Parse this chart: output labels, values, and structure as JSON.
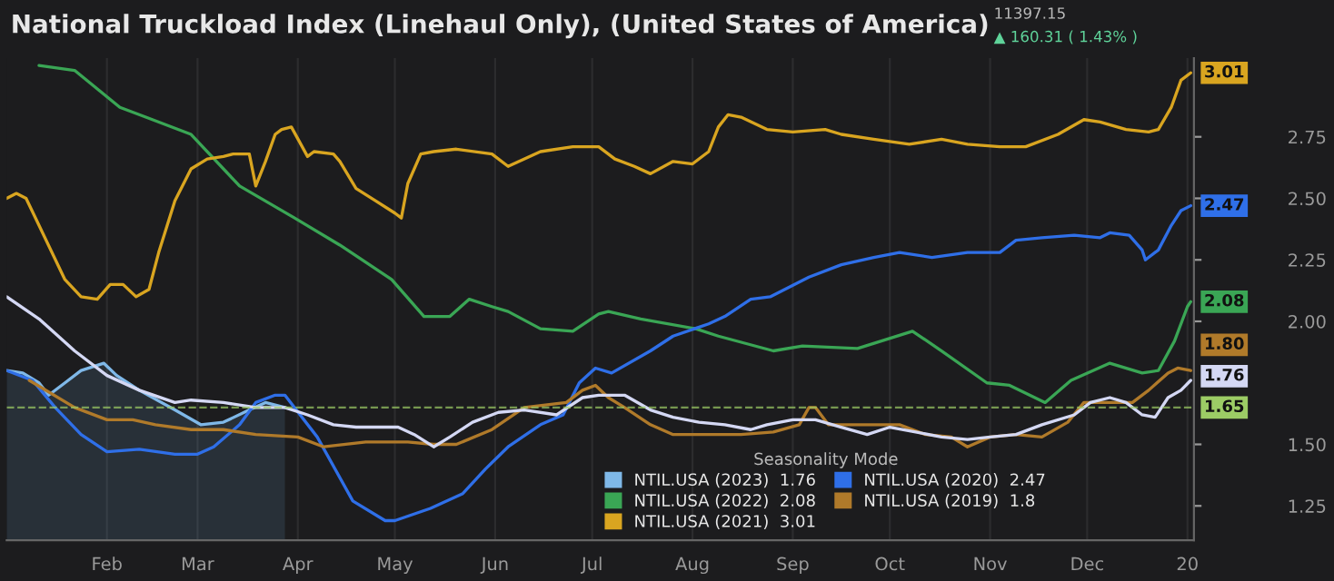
{
  "chart_data": {
    "type": "line",
    "title": "National Truckload Index (Linehaul Only), (United States of America)",
    "legend_title": "Seasonality Mode",
    "annotations": [
      "11397.15",
      "▲ 160.31 ( 1.43% )"
    ],
    "xlim": [
      "2019-01-01",
      "2020-01-03"
    ],
    "xticks": [
      {
        "value": "2019-02-01",
        "label": "Feb"
      },
      {
        "value": "2019-03-01",
        "label": "Mar"
      },
      {
        "value": "2019-04-01",
        "label": "Apr"
      },
      {
        "value": "2019-05-01",
        "label": "May"
      },
      {
        "value": "2019-06-01",
        "label": "Jun"
      },
      {
        "value": "2019-07-01",
        "label": "Jul"
      },
      {
        "value": "2019-08-01",
        "label": "Aug"
      },
      {
        "value": "2019-09-01",
        "label": "Sep"
      },
      {
        "value": "2019-10-01",
        "label": "Oct"
      },
      {
        "value": "2019-11-01",
        "label": "Nov"
      },
      {
        "value": "2019-12-01",
        "label": "Dec"
      },
      {
        "value": "2020-01-01",
        "label": "20"
      }
    ],
    "ylim": [
      1.11,
      3.07
    ],
    "yticks": [
      {
        "value": 1.25,
        "label": "1.25"
      },
      {
        "value": 1.5,
        "label": "1.50"
      },
      {
        "value": 2.0,
        "label": "2.00"
      },
      {
        "value": 2.25,
        "label": "2.25"
      },
      {
        "value": 2.5,
        "label": "2.50"
      },
      {
        "value": 2.75,
        "label": "2.75"
      }
    ],
    "grid": "x",
    "legend": "bottom",
    "marker": "none",
    "line_style": "solid",
    "ref_lines": [
      {
        "axis": "y",
        "value": 1.65,
        "label": "1.65",
        "color": "#9ccc65",
        "line_style": "dashed"
      }
    ],
    "series": [
      {
        "name": "NTIL.USA (2023)  1.76",
        "type": "area",
        "color": "#7fb8e8",
        "x": [
          "2019-01-01",
          "2019-01-06",
          "2019-01-11",
          "2019-01-14",
          "2019-01-19",
          "2019-01-24",
          "2019-01-31",
          "2019-02-04",
          "2019-02-11",
          "2019-02-22",
          "2019-03-02",
          "2019-03-09",
          "2019-03-17",
          "2019-03-22",
          "2019-03-28"
        ],
        "values": [
          1.8,
          1.79,
          1.75,
          1.7,
          1.75,
          1.8,
          1.83,
          1.78,
          1.72,
          1.64,
          1.58,
          1.59,
          1.64,
          1.67,
          1.65
        ]
      },
      {
        "name": "NTIL.USA (2022)  2.08",
        "color": "#3aa655",
        "x": [
          "2019-01-11",
          "2019-01-22",
          "2019-02-05",
          "2019-02-13",
          "2019-02-27",
          "2019-03-14",
          "2019-03-31",
          "2019-04-14",
          "2019-04-30",
          "2019-05-10",
          "2019-05-18",
          "2019-05-24",
          "2019-05-31",
          "2019-06-05",
          "2019-06-15",
          "2019-06-25",
          "2019-07-03",
          "2019-07-06",
          "2019-07-16",
          "2019-08-02",
          "2019-08-09",
          "2019-08-26",
          "2019-09-04",
          "2019-09-21",
          "2019-10-08",
          "2019-10-17",
          "2019-10-31",
          "2019-11-07",
          "2019-11-18",
          "2019-11-26",
          "2019-12-08",
          "2019-12-18",
          "2019-12-23",
          "2019-12-28",
          "2020-01-01",
          "2020-01-02"
        ],
        "values": [
          3.04,
          3.02,
          2.87,
          2.83,
          2.76,
          2.55,
          2.42,
          2.31,
          2.17,
          2.02,
          2.02,
          2.09,
          2.06,
          2.04,
          1.97,
          1.96,
          2.03,
          2.04,
          2.01,
          1.97,
          1.94,
          1.88,
          1.9,
          1.89,
          1.96,
          1.88,
          1.75,
          1.74,
          1.67,
          1.76,
          1.83,
          1.79,
          1.8,
          1.92,
          2.06,
          2.08
        ],
        "value_labels": [
          null,
          null,
          null,
          null,
          null,
          null,
          null,
          null,
          null,
          null,
          null,
          null,
          null,
          null,
          null,
          null,
          null,
          null,
          null,
          null,
          null,
          null,
          null,
          null,
          null,
          null,
          null,
          null,
          null,
          null,
          null,
          null,
          null,
          null,
          null,
          "2.08"
        ]
      },
      {
        "name": "NTIL.USA (2021)  3.01",
        "color": "#d9a520",
        "x": [
          "2019-01-01",
          "2019-01-04",
          "2019-01-07",
          "2019-01-11",
          "2019-01-19",
          "2019-01-24",
          "2019-01-29",
          "2019-02-02",
          "2019-02-06",
          "2019-02-10",
          "2019-02-14",
          "2019-02-17",
          "2019-02-22",
          "2019-02-27",
          "2019-03-04",
          "2019-03-09",
          "2019-03-12",
          "2019-03-17",
          "2019-03-19",
          "2019-03-22",
          "2019-03-25",
          "2019-03-27",
          "2019-03-30",
          "2019-04-04",
          "2019-04-06",
          "2019-04-12",
          "2019-04-14",
          "2019-04-19",
          "2019-04-25",
          "2019-05-01",
          "2019-05-03",
          "2019-05-05",
          "2019-05-09",
          "2019-05-13",
          "2019-05-20",
          "2019-05-31",
          "2019-06-05",
          "2019-06-15",
          "2019-06-25",
          "2019-07-03",
          "2019-07-08",
          "2019-07-14",
          "2019-07-19",
          "2019-07-26",
          "2019-08-01",
          "2019-08-06",
          "2019-08-09",
          "2019-08-12",
          "2019-08-16",
          "2019-08-24",
          "2019-09-01",
          "2019-09-11",
          "2019-09-16",
          "2019-09-26",
          "2019-10-07",
          "2019-10-17",
          "2019-10-25",
          "2019-11-04",
          "2019-11-12",
          "2019-11-22",
          "2019-11-30",
          "2019-12-05",
          "2019-12-13",
          "2019-12-20",
          "2019-12-23",
          "2019-12-27",
          "2019-12-30",
          "2020-01-02"
        ],
        "values": [
          2.5,
          2.52,
          2.5,
          2.39,
          2.17,
          2.1,
          2.09,
          2.15,
          2.15,
          2.1,
          2.13,
          2.28,
          2.49,
          2.62,
          2.66,
          2.67,
          2.68,
          2.68,
          2.55,
          2.65,
          2.76,
          2.78,
          2.79,
          2.67,
          2.69,
          2.68,
          2.65,
          2.54,
          2.49,
          2.44,
          2.42,
          2.56,
          2.68,
          2.69,
          2.7,
          2.68,
          2.63,
          2.69,
          2.71,
          2.71,
          2.66,
          2.63,
          2.6,
          2.65,
          2.64,
          2.69,
          2.79,
          2.84,
          2.83,
          2.78,
          2.77,
          2.78,
          2.76,
          2.74,
          2.72,
          2.74,
          2.72,
          2.71,
          2.71,
          2.76,
          2.82,
          2.81,
          2.78,
          2.77,
          2.78,
          2.87,
          2.98,
          3.01
        ],
        "value_labels": [
          null,
          null,
          null,
          null,
          null,
          null,
          null,
          null,
          null,
          null,
          null,
          null,
          null,
          null,
          null,
          null,
          null,
          null,
          null,
          null,
          null,
          null,
          null,
          null,
          null,
          null,
          null,
          null,
          null,
          null,
          null,
          null,
          null,
          null,
          null,
          null,
          null,
          null,
          null,
          null,
          null,
          null,
          null,
          null,
          null,
          null,
          null,
          null,
          null,
          null,
          null,
          null,
          null,
          null,
          null,
          null,
          null,
          null,
          null,
          null,
          null,
          null,
          null,
          null,
          null,
          null,
          null,
          "3.01"
        ]
      },
      {
        "name": "NTIL.USA (2020)  2.47",
        "color": "#2f6fe8",
        "x": [
          "2019-01-01",
          "2019-01-09",
          "2019-01-16",
          "2019-01-24",
          "2019-02-01",
          "2019-02-11",
          "2019-02-22",
          "2019-03-01",
          "2019-03-06",
          "2019-03-14",
          "2019-03-19",
          "2019-03-25",
          "2019-03-28",
          "2019-04-07",
          "2019-04-18",
          "2019-04-28",
          "2019-05-01",
          "2019-05-12",
          "2019-05-22",
          "2019-05-29",
          "2019-06-05",
          "2019-06-15",
          "2019-06-22",
          "2019-06-27",
          "2019-07-02",
          "2019-07-07",
          "2019-07-19",
          "2019-07-26",
          "2019-08-06",
          "2019-08-11",
          "2019-08-19",
          "2019-08-25",
          "2019-09-06",
          "2019-09-16",
          "2019-09-26",
          "2019-10-04",
          "2019-10-14",
          "2019-10-25",
          "2019-11-04",
          "2019-11-09",
          "2019-11-17",
          "2019-11-27",
          "2019-12-05",
          "2019-12-08",
          "2019-12-14",
          "2019-12-18",
          "2019-12-19",
          "2019-12-23",
          "2019-12-27",
          "2019-12-30",
          "2020-01-02"
        ],
        "values": [
          1.8,
          1.76,
          1.65,
          1.54,
          1.47,
          1.48,
          1.46,
          1.46,
          1.49,
          1.58,
          1.67,
          1.7,
          1.7,
          1.53,
          1.27,
          1.19,
          1.19,
          1.24,
          1.3,
          1.4,
          1.49,
          1.58,
          1.62,
          1.75,
          1.81,
          1.79,
          1.88,
          1.94,
          1.99,
          2.02,
          2.09,
          2.1,
          2.18,
          2.23,
          2.26,
          2.28,
          2.26,
          2.28,
          2.28,
          2.33,
          2.34,
          2.35,
          2.34,
          2.36,
          2.35,
          2.29,
          2.25,
          2.29,
          2.39,
          2.45,
          2.47
        ],
        "value_labels": [
          null,
          null,
          null,
          null,
          null,
          null,
          null,
          null,
          null,
          null,
          null,
          null,
          null,
          null,
          null,
          null,
          null,
          null,
          null,
          null,
          null,
          null,
          null,
          null,
          null,
          null,
          null,
          null,
          null,
          null,
          null,
          null,
          null,
          null,
          null,
          null,
          null,
          null,
          null,
          null,
          null,
          null,
          null,
          null,
          null,
          null,
          null,
          null,
          null,
          null,
          "2.47"
        ]
      },
      {
        "name": "NTIL.USA (2019)  1.8",
        "color": "#b07a2a",
        "x": [
          "2019-01-08",
          "2019-01-22",
          "2019-02-01",
          "2019-02-09",
          "2019-02-16",
          "2019-02-27",
          "2019-03-09",
          "2019-03-19",
          "2019-04-01",
          "2019-04-09",
          "2019-04-22",
          "2019-05-05",
          "2019-05-13",
          "2019-05-20",
          "2019-05-31",
          "2019-06-10",
          "2019-06-23",
          "2019-06-28",
          "2019-07-02",
          "2019-07-06",
          "2019-07-11",
          "2019-07-19",
          "2019-07-26",
          "2019-08-06",
          "2019-08-16",
          "2019-08-26",
          "2019-09-03",
          "2019-09-06",
          "2019-09-08",
          "2019-09-12",
          "2019-09-19",
          "2019-09-26",
          "2019-10-04",
          "2019-10-12",
          "2019-10-20",
          "2019-10-25",
          "2019-11-01",
          "2019-11-09",
          "2019-11-17",
          "2019-11-25",
          "2019-11-30",
          "2019-12-08",
          "2019-12-15",
          "2019-12-20",
          "2019-12-26",
          "2019-12-29",
          "2020-01-02"
        ],
        "values": [
          1.76,
          1.65,
          1.6,
          1.6,
          1.58,
          1.56,
          1.56,
          1.54,
          1.53,
          1.49,
          1.51,
          1.51,
          1.5,
          1.5,
          1.56,
          1.65,
          1.67,
          1.72,
          1.74,
          1.69,
          1.65,
          1.58,
          1.54,
          1.54,
          1.54,
          1.55,
          1.58,
          1.65,
          1.65,
          1.58,
          1.58,
          1.58,
          1.58,
          1.54,
          1.53,
          1.49,
          1.53,
          1.54,
          1.53,
          1.59,
          1.67,
          1.67,
          1.67,
          1.72,
          1.79,
          1.81,
          1.8
        ],
        "value_labels": [
          null,
          null,
          null,
          null,
          null,
          null,
          null,
          null,
          null,
          null,
          null,
          null,
          null,
          null,
          null,
          null,
          null,
          null,
          null,
          null,
          null,
          null,
          null,
          null,
          null,
          null,
          null,
          null,
          null,
          null,
          null,
          null,
          null,
          null,
          null,
          null,
          null,
          null,
          null,
          null,
          null,
          null,
          null,
          null,
          null,
          null,
          "1.80"
        ]
      },
      {
        "color": "#d4d8f4",
        "x": [
          "2019-01-01",
          "2019-01-11",
          "2019-01-22",
          "2019-02-01",
          "2019-02-11",
          "2019-02-22",
          "2019-02-27",
          "2019-03-09",
          "2019-03-19",
          "2019-03-28",
          "2019-04-04",
          "2019-04-12",
          "2019-04-19",
          "2019-05-02",
          "2019-05-07",
          "2019-05-13",
          "2019-05-18",
          "2019-05-25",
          "2019-06-02",
          "2019-06-10",
          "2019-06-20",
          "2019-06-28",
          "2019-07-03",
          "2019-07-11",
          "2019-07-19",
          "2019-07-26",
          "2019-08-03",
          "2019-08-11",
          "2019-08-19",
          "2019-08-24",
          "2019-09-01",
          "2019-09-08",
          "2019-09-16",
          "2019-09-24",
          "2019-10-01",
          "2019-10-09",
          "2019-10-17",
          "2019-10-25",
          "2019-11-01",
          "2019-11-09",
          "2019-11-17",
          "2019-11-27",
          "2019-12-02",
          "2019-12-08",
          "2019-12-13",
          "2019-12-18",
          "2019-12-22",
          "2019-12-26",
          "2019-12-30",
          "2020-01-02"
        ],
        "values": [
          2.1,
          2.01,
          1.88,
          1.78,
          1.72,
          1.67,
          1.68,
          1.67,
          1.65,
          1.65,
          1.62,
          1.58,
          1.57,
          1.57,
          1.54,
          1.49,
          1.53,
          1.59,
          1.63,
          1.64,
          1.62,
          1.69,
          1.7,
          1.7,
          1.64,
          1.61,
          1.59,
          1.58,
          1.56,
          1.58,
          1.6,
          1.6,
          1.57,
          1.54,
          1.57,
          1.55,
          1.53,
          1.52,
          1.53,
          1.54,
          1.58,
          1.62,
          1.67,
          1.69,
          1.67,
          1.62,
          1.61,
          1.69,
          1.72,
          1.76
        ],
        "value_labels": [
          null,
          null,
          null,
          null,
          null,
          null,
          null,
          null,
          null,
          null,
          null,
          null,
          null,
          null,
          null,
          null,
          null,
          null,
          null,
          null,
          null,
          null,
          null,
          null,
          null,
          null,
          null,
          null,
          null,
          null,
          null,
          null,
          null,
          null,
          null,
          null,
          null,
          null,
          null,
          null,
          null,
          null,
          null,
          null,
          null,
          null,
          null,
          null,
          null,
          "1.76"
        ]
      }
    ]
  }
}
